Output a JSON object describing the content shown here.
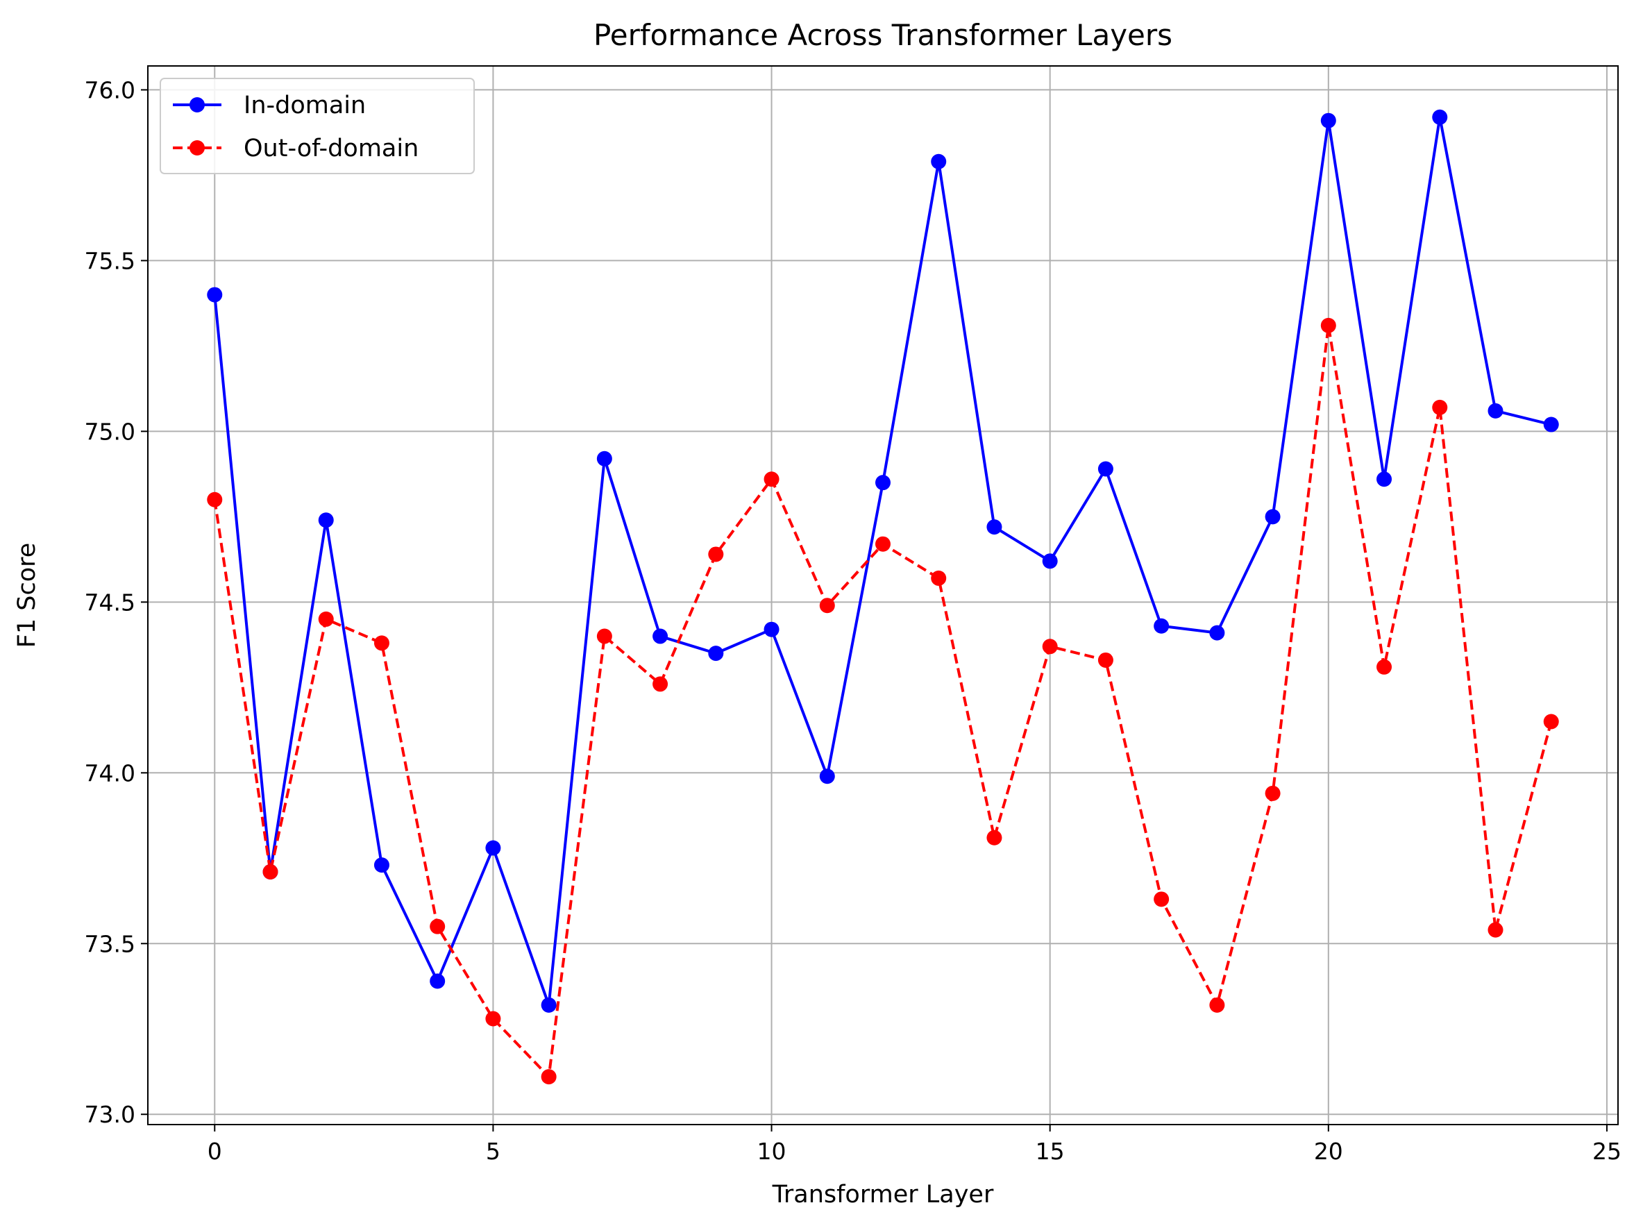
{
  "chart_data": {
    "type": "line",
    "title": "Performance Across Transformer Layers",
    "xlabel": "Transformer Layer",
    "ylabel": "F1 Score",
    "xlim": [
      -1.2,
      25.2
    ],
    "ylim": [
      72.97,
      76.07
    ],
    "xticks": [
      0,
      5,
      10,
      15,
      20,
      25
    ],
    "yticks": [
      73.0,
      73.5,
      74.0,
      74.5,
      75.0,
      75.5,
      76.0
    ],
    "xtick_labels": [
      "0",
      "5",
      "10",
      "15",
      "20",
      "25"
    ],
    "ytick_labels": [
      "73.0",
      "73.5",
      "74.0",
      "74.5",
      "75.0",
      "75.5",
      "76.0"
    ],
    "grid": true,
    "legend_position": "top-left",
    "x": [
      0,
      1,
      2,
      3,
      4,
      5,
      6,
      7,
      8,
      9,
      10,
      11,
      12,
      13,
      14,
      15,
      16,
      17,
      18,
      19,
      20,
      21,
      22,
      23,
      24
    ],
    "series": [
      {
        "name": "In-domain",
        "color": "#0000ff",
        "line_style": "solid",
        "marker": "circle",
        "values": [
          75.4,
          73.71,
          74.74,
          73.73,
          73.39,
          73.78,
          73.32,
          74.92,
          74.4,
          74.35,
          74.42,
          73.99,
          74.85,
          75.79,
          74.72,
          74.62,
          74.89,
          74.43,
          74.41,
          74.75,
          75.91,
          74.86,
          75.92,
          75.06,
          75.02
        ]
      },
      {
        "name": "Out-of-domain",
        "color": "#ff0000",
        "line_style": "dashed",
        "marker": "circle",
        "values": [
          74.8,
          73.71,
          74.45,
          74.38,
          73.55,
          73.28,
          73.11,
          74.4,
          74.26,
          74.64,
          74.86,
          74.49,
          74.67,
          74.57,
          73.81,
          74.37,
          74.33,
          73.63,
          73.32,
          73.94,
          75.31,
          74.31,
          75.07,
          73.54,
          74.15
        ]
      }
    ]
  }
}
